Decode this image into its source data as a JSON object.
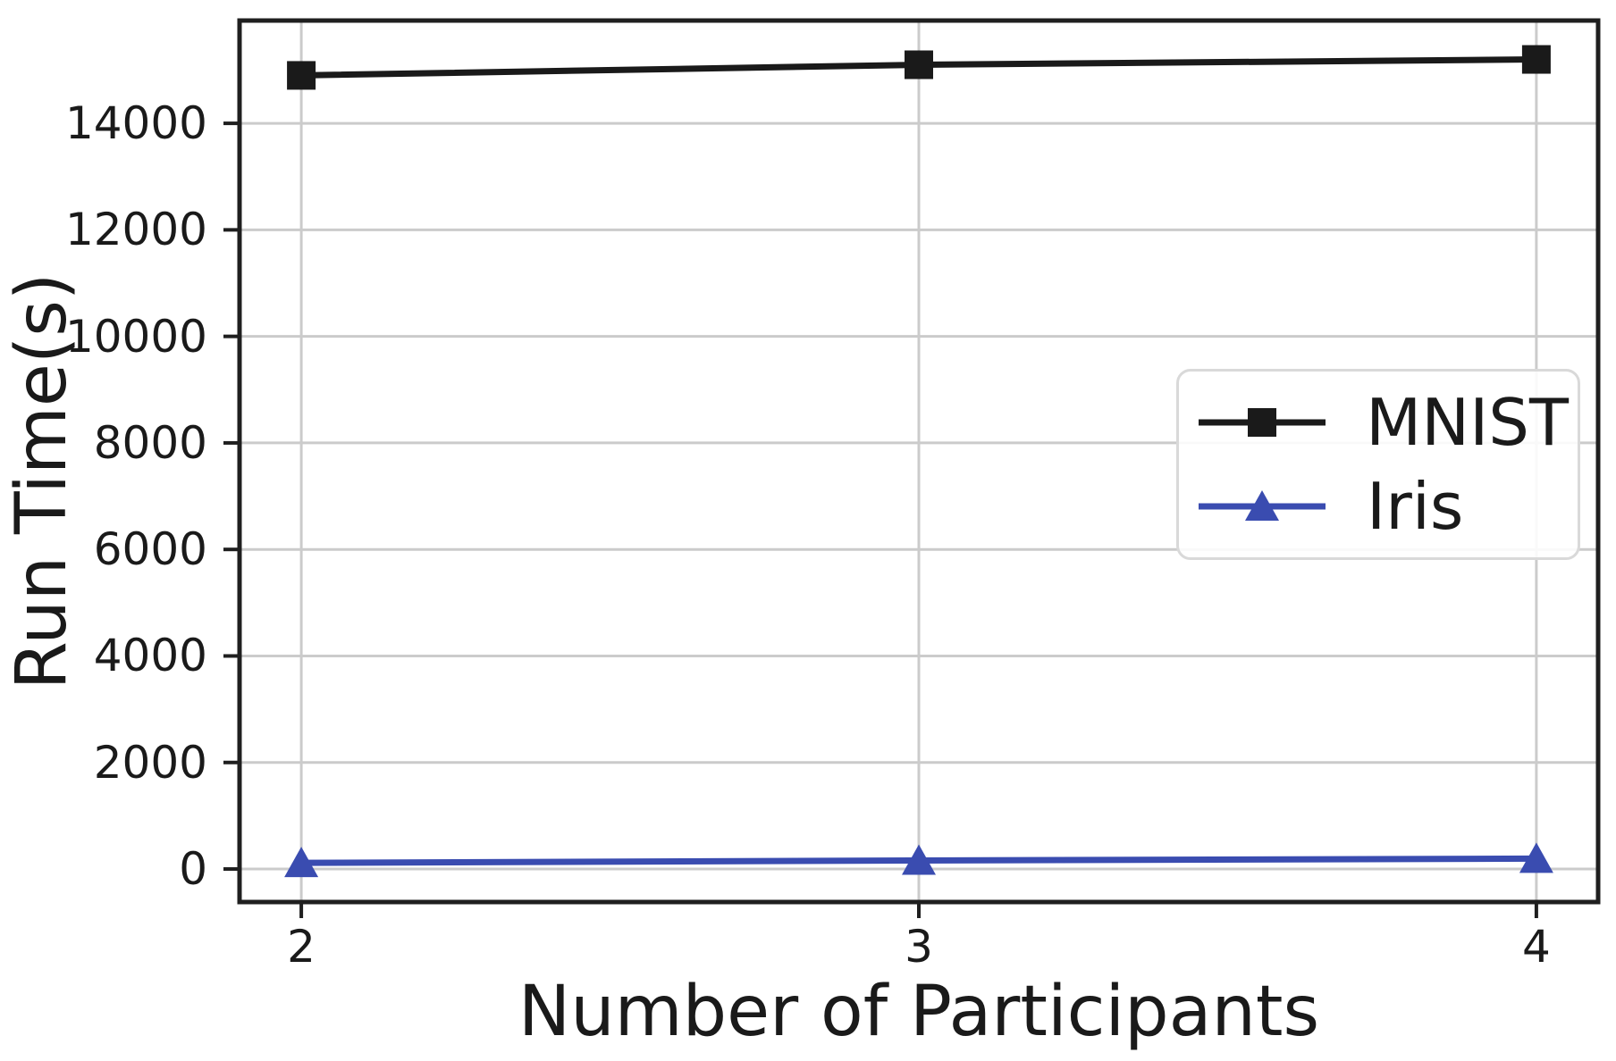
{
  "figure": {
    "background": "#ffffff",
    "text_color": "#1a1a1a",
    "grid_color": "#cbcbcb",
    "spine_color": "#1f1f1f",
    "legend_border_color": "#d9d9d9"
  },
  "chart_data": {
    "type": "line",
    "title": "",
    "xlabel": "Number of Participants",
    "ylabel": "Run Time(s)",
    "x": [
      2,
      3,
      4
    ],
    "series": [
      {
        "name": "MNIST",
        "values": [
          14900,
          15100,
          15200
        ],
        "color": "#1a1a1a",
        "marker": "square"
      },
      {
        "name": "Iris",
        "values": [
          115,
          160,
          195
        ],
        "color": "#3a4cb0",
        "marker": "triangle"
      }
    ],
    "xticks": [
      2,
      3,
      4
    ],
    "yticks": [
      0,
      2000,
      4000,
      6000,
      8000,
      10000,
      12000,
      14000
    ],
    "xlim": [
      1.9,
      4.1
    ],
    "ylim": [
      -620,
      15930
    ],
    "grid": true,
    "legend_position": "center right"
  }
}
